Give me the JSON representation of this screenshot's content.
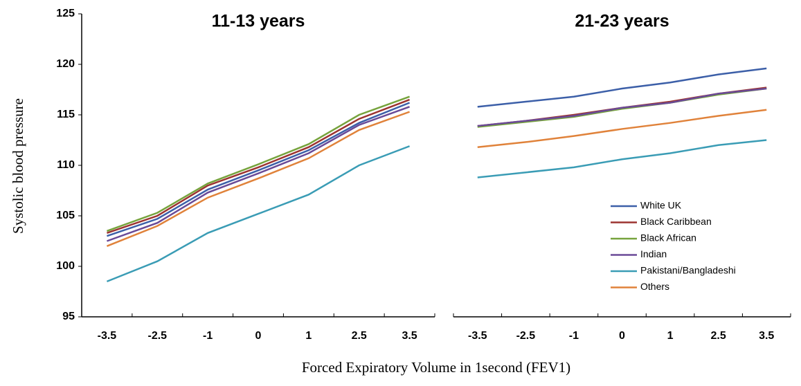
{
  "chart_data": [
    {
      "type": "line",
      "title": "11-13 years",
      "y_label": "Systolic blood pressure",
      "x_label": "Forced Expiratory Volume in 1second (FEV1)",
      "categories": [
        "-3.5",
        "-2.5",
        "-1",
        "0",
        "1",
        "2.5",
        "3.5"
      ],
      "ylim": [
        95,
        125
      ],
      "yticks": [
        95,
        100,
        105,
        110,
        115,
        120,
        125
      ],
      "series": [
        {
          "name": "White UK",
          "color": "#3c5fa8",
          "values": [
            103.0,
            104.7,
            107.6,
            109.5,
            111.5,
            114.2,
            116.2
          ]
        },
        {
          "name": "Black Caribbean",
          "color": "#9c3330",
          "values": [
            103.3,
            105.0,
            108.0,
            109.8,
            111.8,
            114.6,
            116.5
          ]
        },
        {
          "name": "Black African",
          "color": "#76a33c",
          "values": [
            103.5,
            105.3,
            108.2,
            110.1,
            112.1,
            115.0,
            116.8
          ]
        },
        {
          "name": "Indian",
          "color": "#6a4a97",
          "values": [
            102.5,
            104.3,
            107.3,
            109.2,
            111.2,
            114.0,
            115.8
          ]
        },
        {
          "name": "Pakistani/Bangladeshi",
          "color": "#3a9cb5",
          "values": [
            98.5,
            100.5,
            103.3,
            105.2,
            107.1,
            110.0,
            111.9
          ]
        },
        {
          "name": "Others",
          "color": "#e0823a",
          "values": [
            102.0,
            104.0,
            106.8,
            108.7,
            110.7,
            113.5,
            115.3
          ]
        }
      ]
    },
    {
      "type": "line",
      "title": "21-23 years",
      "categories": [
        "-3.5",
        "-2.5",
        "-1",
        "0",
        "1",
        "2.5",
        "3.5"
      ],
      "ylim": [
        95,
        125
      ],
      "series": [
        {
          "name": "White UK",
          "color": "#3c5fa8",
          "values": [
            115.8,
            116.3,
            116.8,
            117.6,
            118.2,
            119.0,
            119.6
          ]
        },
        {
          "name": "Black Caribbean",
          "color": "#9c3330",
          "values": [
            113.9,
            114.4,
            115.0,
            115.7,
            116.3,
            117.1,
            117.7
          ]
        },
        {
          "name": "Black African",
          "color": "#76a33c",
          "values": [
            113.8,
            114.3,
            114.8,
            115.6,
            116.2,
            117.0,
            117.6
          ]
        },
        {
          "name": "Indian",
          "color": "#6a4a97",
          "values": [
            113.9,
            114.4,
            114.9,
            115.7,
            116.2,
            117.1,
            117.6
          ]
        },
        {
          "name": "Pakistani/Bangladeshi",
          "color": "#3a9cb5",
          "values": [
            108.8,
            109.3,
            109.8,
            110.6,
            111.2,
            112.0,
            112.5
          ]
        },
        {
          "name": "Others",
          "color": "#e0823a",
          "values": [
            111.8,
            112.3,
            112.9,
            113.6,
            114.2,
            114.9,
            115.5
          ]
        }
      ]
    }
  ]
}
